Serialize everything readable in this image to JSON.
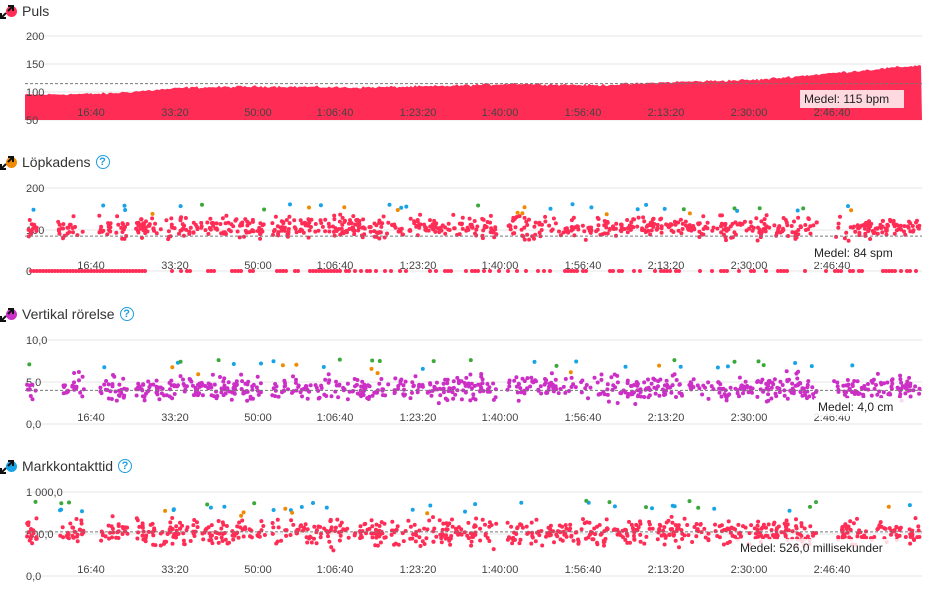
{
  "icons": {
    "expand": "expand-icon",
    "help": "question-icon"
  },
  "colors": {
    "red": "#ff2d55",
    "orange": "#f08a00",
    "purple": "#cc2fc6",
    "blue": "#17a4e6",
    "green": "#3aa83a",
    "grid": "#e6e6e6"
  },
  "x_ticks": [
    "16:40",
    "33:20",
    "50:00",
    "1:06:40",
    "1:23:20",
    "1:40:00",
    "1:56:40",
    "2:13:20",
    "2:30:00",
    "2:46:40"
  ],
  "panels": [
    {
      "key": "puls",
      "title": "Puls",
      "dot_color": "#ff2d55",
      "help": false,
      "y_ticks": [
        "200",
        "150",
        "100",
        "50"
      ],
      "avg_label": "Medel: 115 bpm"
    },
    {
      "key": "kadens",
      "title": "Löpkadens",
      "dot_color": "#f08a00",
      "help": true,
      "y_ticks": [
        "200",
        "100",
        "0"
      ],
      "avg_label": "Medel: 84 spm"
    },
    {
      "key": "vertikal",
      "title": "Vertikal rörelse",
      "dot_color": "#cc2fc6",
      "help": true,
      "y_ticks": [
        "10,0",
        "5,0",
        "0,0"
      ],
      "avg_label": "Medel: 4,0 cm"
    },
    {
      "key": "mark",
      "title": "Markkontakttid",
      "dot_color": "#17a4e6",
      "help": true,
      "y_ticks": [
        "1 000,0",
        "500,0",
        "0,0"
      ],
      "avg_label": "Medel: 526,0 millisekunder"
    }
  ],
  "chart_data": [
    {
      "type": "area",
      "title": "Puls",
      "x_unit": "elapsed time",
      "ylim": [
        50,
        200
      ],
      "average": 115,
      "x": [
        "0:00",
        "16:40",
        "33:20",
        "50:00",
        "1:06:40",
        "1:23:20",
        "1:40:00",
        "1:56:40",
        "2:13:20",
        "2:30:00",
        "2:46:40",
        "2:55:00"
      ],
      "values": [
        95,
        97,
        108,
        110,
        108,
        110,
        115,
        112,
        118,
        122,
        135,
        148
      ]
    },
    {
      "type": "scatter",
      "title": "Löpkadens",
      "ylim": [
        0,
        200
      ],
      "average": 84
    },
    {
      "type": "scatter",
      "title": "Vertikal rörelse",
      "ylim": [
        0,
        10
      ],
      "average": 4.0
    },
    {
      "type": "scatter",
      "title": "Markkontakttid",
      "ylim": [
        0,
        1000
      ],
      "average": 526.0
    }
  ]
}
